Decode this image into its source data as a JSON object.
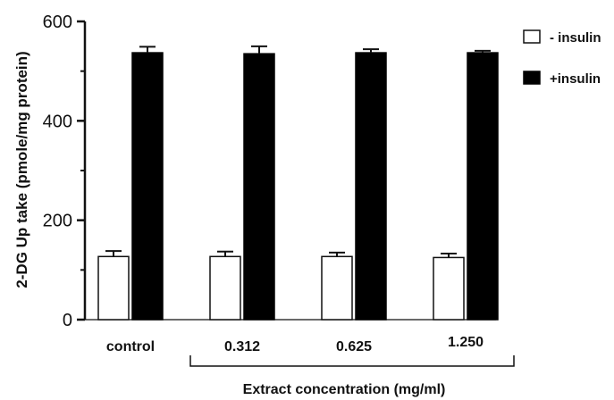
{
  "chart_data": {
    "type": "bar",
    "categories": [
      "control",
      "0.312",
      "0.625",
      "1.250"
    ],
    "series": [
      {
        "name": "- insulin",
        "values": [
          127,
          127,
          127,
          125
        ],
        "errors": [
          11,
          10,
          8,
          8
        ],
        "fill": "#ffffff",
        "stroke": "#111111"
      },
      {
        "name": "+insulin",
        "values": [
          537,
          535,
          537,
          537
        ],
        "errors": [
          12,
          15,
          7,
          4
        ],
        "fill": "#000000",
        "stroke": "#000000"
      }
    ],
    "ylabel": "2-DG Up take (pmole/mg protein)",
    "xlabel": "Extract concentration (mg/ml)",
    "ylim": [
      0,
      600
    ],
    "yticks": [
      0,
      200,
      400,
      600
    ],
    "grid": false,
    "legend_position": "top-right"
  }
}
